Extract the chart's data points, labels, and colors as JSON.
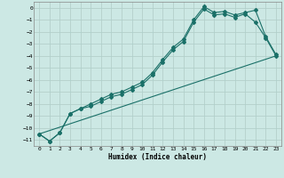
{
  "x": [
    0,
    1,
    2,
    3,
    4,
    5,
    6,
    7,
    8,
    9,
    10,
    11,
    12,
    13,
    14,
    15,
    16,
    17,
    18,
    19,
    20,
    21,
    22,
    23
  ],
  "line1": [
    -10.5,
    -11.1,
    -10.4,
    -8.8,
    -8.4,
    -8.2,
    -7.8,
    -7.4,
    -7.2,
    -6.8,
    -6.4,
    -5.6,
    -4.5,
    -3.5,
    -2.8,
    -1.2,
    -0.1,
    -0.6,
    -0.5,
    -0.8,
    -0.5,
    -1.2,
    -2.5,
    -4.0
  ],
  "line2": [
    -10.5,
    -11.1,
    -10.4,
    -8.8,
    -8.4,
    -8.0,
    -7.6,
    -7.2,
    -7.0,
    -6.6,
    -6.2,
    -5.4,
    -4.3,
    -3.3,
    -2.6,
    -1.0,
    0.1,
    -0.4,
    -0.3,
    -0.6,
    -0.4,
    -0.2,
    -2.4,
    -3.9
  ],
  "line3_x": [
    0,
    23
  ],
  "line3_y": [
    -10.5,
    -4.0
  ],
  "bg_color": "#cce8e4",
  "grid_color_teal": "#a8d4ce",
  "grid_color_pink": "#e8c8c8",
  "line_color": "#1a7068",
  "marker": "D",
  "marker_size": 2.0,
  "xlabel": "Humidex (Indice chaleur)",
  "ylim": [
    -11.5,
    0.5
  ],
  "xlim": [
    -0.5,
    23.5
  ],
  "yticks": [
    0,
    -1,
    -2,
    -3,
    -4,
    -5,
    -6,
    -7,
    -8,
    -9,
    -10,
    -11
  ],
  "xticks": [
    0,
    1,
    2,
    3,
    4,
    5,
    6,
    7,
    8,
    9,
    10,
    11,
    12,
    13,
    14,
    15,
    16,
    17,
    18,
    19,
    20,
    21,
    22,
    23
  ]
}
